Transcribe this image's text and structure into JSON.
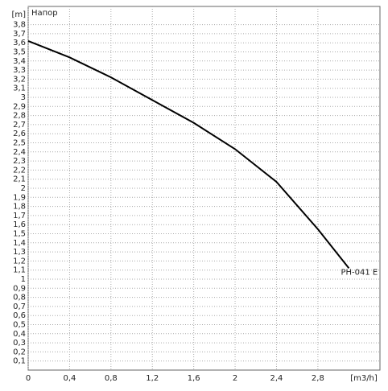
{
  "chart_data": {
    "type": "line",
    "title": "Напор",
    "xlabel": "[m3/h]",
    "ylabel": "[m]",
    "x": [
      0,
      0.4,
      0.8,
      1.2,
      1.6,
      2.0,
      2.4,
      2.8,
      3.1
    ],
    "series": [
      {
        "name": "PH-041 E",
        "color": "#000000",
        "values": [
          3.62,
          3.44,
          3.22,
          2.97,
          2.72,
          2.43,
          2.07,
          1.55,
          1.12
        ]
      }
    ],
    "xlim": [
      0,
      3.4
    ],
    "ylim": [
      0,
      4
    ],
    "xticks": [
      0,
      {
        "value": 0.4,
        "label": "0,4"
      },
      {
        "value": 0.8,
        "label": "0,8"
      },
      {
        "value": 1.2,
        "label": "1,2"
      },
      {
        "value": 1.6,
        "label": "1,6"
      },
      2,
      {
        "value": 2.4,
        "label": "2,4"
      },
      {
        "value": 2.8,
        "label": "2,8"
      }
    ],
    "yticks": [
      {
        "value": 0.1,
        "label": "0,1"
      },
      {
        "value": 0.2,
        "label": "0,2"
      },
      {
        "value": 0.3,
        "label": "0,3"
      },
      {
        "value": 0.4,
        "label": "0,4"
      },
      {
        "value": 0.5,
        "label": "0,5"
      },
      {
        "value": 0.6,
        "label": "0,6"
      },
      {
        "value": 0.7,
        "label": "0,7"
      },
      {
        "value": 0.8,
        "label": "0,8"
      },
      {
        "value": 0.9,
        "label": "0,9"
      },
      1,
      {
        "value": 1.1,
        "label": "1,1"
      },
      {
        "value": 1.2,
        "label": "1,2"
      },
      {
        "value": 1.3,
        "label": "1,3"
      },
      {
        "value": 1.4,
        "label": "1,4"
      },
      {
        "value": 1.5,
        "label": "1,5"
      },
      {
        "value": 1.6,
        "label": "1,6"
      },
      {
        "value": 1.7,
        "label": "1,7"
      },
      {
        "value": 1.8,
        "label": "1,8"
      },
      {
        "value": 1.9,
        "label": "1,9"
      },
      2,
      {
        "value": 2.1,
        "label": "2,1"
      },
      {
        "value": 2.2,
        "label": "2,2"
      },
      {
        "value": 2.3,
        "label": "2,3"
      },
      {
        "value": 2.4,
        "label": "2,4"
      },
      {
        "value": 2.5,
        "label": "2,5"
      },
      {
        "value": 2.6,
        "label": "2,6"
      },
      {
        "value": 2.7,
        "label": "2,7"
      },
      {
        "value": 2.8,
        "label": "2,8"
      },
      {
        "value": 2.9,
        "label": "2,9"
      },
      3,
      {
        "value": 3.1,
        "label": "3,1"
      },
      {
        "value": 3.2,
        "label": "3,2"
      },
      {
        "value": 3.3,
        "label": "3,3"
      },
      {
        "value": 3.4,
        "label": "3,4"
      },
      {
        "value": 3.5,
        "label": "3,5"
      },
      {
        "value": 3.6,
        "label": "3,6"
      },
      {
        "value": 3.7,
        "label": "3,7"
      },
      {
        "value": 3.8,
        "label": "3,8"
      }
    ],
    "grid": true
  }
}
